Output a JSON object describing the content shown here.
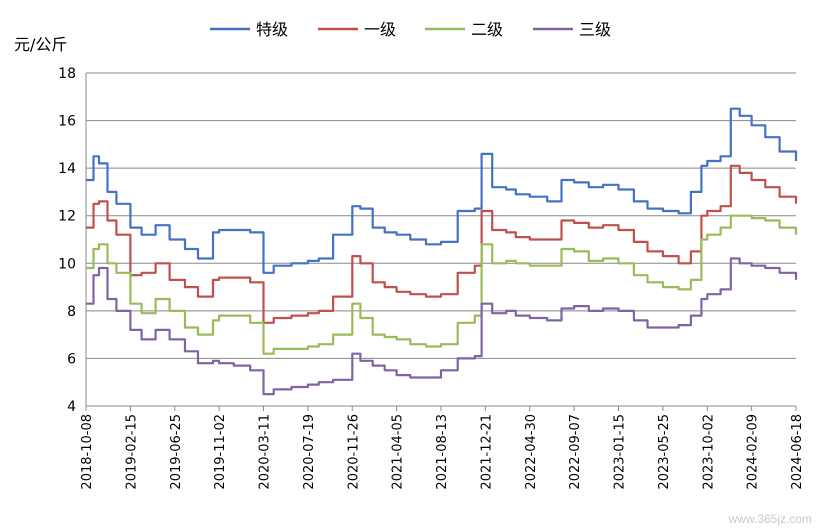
{
  "chart_data": {
    "type": "line",
    "ylabel": "元/公斤",
    "ylim": [
      4,
      18
    ],
    "yticks": [
      4,
      6,
      8,
      10,
      12,
      14,
      16,
      18
    ],
    "grid": true,
    "legend_position": "top",
    "xlim": [
      "2018-10-08",
      "2024-06-18"
    ],
    "xtick_labels": [
      "2018-10-08",
      "2019-02-15",
      "2019-06-25",
      "2019-11-02",
      "2020-03-11",
      "2020-07-19",
      "2020-11-26",
      "2021-04-05",
      "2021-08-13",
      "2021-12-21",
      "2022-04-30",
      "2022-09-07",
      "2023-01-15",
      "2023-05-25",
      "2023-10-02",
      "2024-02-09",
      "2024-06-18"
    ],
    "series": [
      {
        "name": "特级",
        "color": "#4472C4",
        "x": [
          "2018-10-08",
          "2018-10-30",
          "2018-11-15",
          "2018-12-10",
          "2019-01-05",
          "2019-02-15",
          "2019-03-20",
          "2019-04-30",
          "2019-06-10",
          "2019-07-25",
          "2019-09-01",
          "2019-10-15",
          "2019-11-02",
          "2019-12-15",
          "2020-02-01",
          "2020-03-11",
          "2020-04-10",
          "2020-06-01",
          "2020-07-19",
          "2020-08-20",
          "2020-10-01",
          "2020-11-26",
          "2020-12-20",
          "2021-01-25",
          "2021-03-01",
          "2021-04-05",
          "2021-05-15",
          "2021-06-30",
          "2021-08-13",
          "2021-10-01",
          "2021-11-20",
          "2021-12-10",
          "2022-01-10",
          "2022-02-20",
          "2022-03-20",
          "2022-04-30",
          "2022-06-20",
          "2022-08-01",
          "2022-09-07",
          "2022-10-20",
          "2022-12-01",
          "2023-01-15",
          "2023-03-01",
          "2023-04-10",
          "2023-05-25",
          "2023-07-10",
          "2023-08-15",
          "2023-09-15",
          "2023-10-02",
          "2023-11-10",
          "2023-12-10",
          "2024-01-05",
          "2024-02-09",
          "2024-03-20",
          "2024-05-01",
          "2024-06-18"
        ],
        "values": [
          13.5,
          14.5,
          14.2,
          13.0,
          12.5,
          11.5,
          11.2,
          11.6,
          11.0,
          10.6,
          10.2,
          11.3,
          11.4,
          11.4,
          11.3,
          9.6,
          9.9,
          10.0,
          10.1,
          10.2,
          11.2,
          12.4,
          12.3,
          11.5,
          11.3,
          11.2,
          11.0,
          10.8,
          10.9,
          12.2,
          12.3,
          14.6,
          13.2,
          13.1,
          12.9,
          12.8,
          12.6,
          13.5,
          13.4,
          13.2,
          13.3,
          13.1,
          12.6,
          12.3,
          12.2,
          12.1,
          13.0,
          14.1,
          14.3,
          14.5,
          16.5,
          16.2,
          15.8,
          15.3,
          14.7,
          14.3
        ]
      },
      {
        "name": "一级",
        "color": "#C0504D",
        "x": [
          "2018-10-08",
          "2018-10-30",
          "2018-11-15",
          "2018-12-10",
          "2019-01-05",
          "2019-02-15",
          "2019-03-20",
          "2019-04-30",
          "2019-06-10",
          "2019-07-25",
          "2019-09-01",
          "2019-10-15",
          "2019-11-02",
          "2019-12-15",
          "2020-02-01",
          "2020-03-11",
          "2020-04-10",
          "2020-06-01",
          "2020-07-19",
          "2020-08-20",
          "2020-10-01",
          "2020-11-26",
          "2020-12-20",
          "2021-01-25",
          "2021-03-01",
          "2021-04-05",
          "2021-05-15",
          "2021-06-30",
          "2021-08-13",
          "2021-10-01",
          "2021-11-20",
          "2021-12-10",
          "2022-01-10",
          "2022-02-20",
          "2022-03-20",
          "2022-04-30",
          "2022-06-20",
          "2022-08-01",
          "2022-09-07",
          "2022-10-20",
          "2022-12-01",
          "2023-01-15",
          "2023-03-01",
          "2023-04-10",
          "2023-05-25",
          "2023-07-10",
          "2023-08-15",
          "2023-09-15",
          "2023-10-02",
          "2023-11-10",
          "2023-12-10",
          "2024-01-05",
          "2024-02-09",
          "2024-03-20",
          "2024-05-01",
          "2024-06-18"
        ],
        "values": [
          11.5,
          12.5,
          12.6,
          11.8,
          11.2,
          9.5,
          9.6,
          10.0,
          9.3,
          9.0,
          8.6,
          9.3,
          9.4,
          9.4,
          9.2,
          7.5,
          7.7,
          7.8,
          7.9,
          8.0,
          8.6,
          10.3,
          10.0,
          9.2,
          9.0,
          8.8,
          8.7,
          8.6,
          8.7,
          9.6,
          9.9,
          12.2,
          11.4,
          11.3,
          11.1,
          11.0,
          11.0,
          11.8,
          11.7,
          11.5,
          11.6,
          11.4,
          10.9,
          10.5,
          10.3,
          10.0,
          10.5,
          12.0,
          12.2,
          12.4,
          14.1,
          13.8,
          13.5,
          13.2,
          12.8,
          12.5
        ]
      },
      {
        "name": "二级",
        "color": "#9BBB59",
        "x": [
          "2018-10-08",
          "2018-10-30",
          "2018-11-15",
          "2018-12-10",
          "2019-01-05",
          "2019-02-15",
          "2019-03-20",
          "2019-04-30",
          "2019-06-10",
          "2019-07-25",
          "2019-09-01",
          "2019-10-15",
          "2019-11-02",
          "2019-12-15",
          "2020-02-01",
          "2020-03-11",
          "2020-04-10",
          "2020-06-01",
          "2020-07-19",
          "2020-08-20",
          "2020-10-01",
          "2020-11-26",
          "2020-12-20",
          "2021-01-25",
          "2021-03-01",
          "2021-04-05",
          "2021-05-15",
          "2021-06-30",
          "2021-08-13",
          "2021-10-01",
          "2021-11-20",
          "2021-12-10",
          "2022-01-10",
          "2022-02-20",
          "2022-03-20",
          "2022-04-30",
          "2022-06-20",
          "2022-08-01",
          "2022-09-07",
          "2022-10-20",
          "2022-12-01",
          "2023-01-15",
          "2023-03-01",
          "2023-04-10",
          "2023-05-25",
          "2023-07-10",
          "2023-08-15",
          "2023-09-15",
          "2023-10-02",
          "2023-11-10",
          "2023-12-10",
          "2024-01-05",
          "2024-02-09",
          "2024-03-20",
          "2024-05-01",
          "2024-06-18"
        ],
        "values": [
          9.8,
          10.6,
          10.8,
          10.0,
          9.6,
          8.3,
          7.9,
          8.5,
          8.0,
          7.3,
          7.0,
          7.6,
          7.8,
          7.8,
          7.5,
          6.2,
          6.4,
          6.4,
          6.5,
          6.6,
          7.0,
          8.3,
          7.7,
          7.0,
          6.9,
          6.8,
          6.6,
          6.5,
          6.6,
          7.5,
          7.8,
          10.8,
          10.0,
          10.1,
          10.0,
          9.9,
          9.9,
          10.6,
          10.5,
          10.1,
          10.2,
          10.0,
          9.5,
          9.2,
          9.0,
          8.9,
          9.3,
          11.0,
          11.2,
          11.5,
          12.0,
          12.0,
          11.9,
          11.8,
          11.5,
          11.2
        ]
      },
      {
        "name": "三级",
        "color": "#8064A2",
        "x": [
          "2018-10-08",
          "2018-10-30",
          "2018-11-15",
          "2018-12-10",
          "2019-01-05",
          "2019-02-15",
          "2019-03-20",
          "2019-04-30",
          "2019-06-10",
          "2019-07-25",
          "2019-09-01",
          "2019-10-15",
          "2019-11-02",
          "2019-12-15",
          "2020-02-01",
          "2020-03-11",
          "2020-04-10",
          "2020-06-01",
          "2020-07-19",
          "2020-08-20",
          "2020-10-01",
          "2020-11-26",
          "2020-12-20",
          "2021-01-25",
          "2021-03-01",
          "2021-04-05",
          "2021-05-15",
          "2021-06-30",
          "2021-08-13",
          "2021-10-01",
          "2021-11-20",
          "2021-12-10",
          "2022-01-10",
          "2022-02-20",
          "2022-03-20",
          "2022-04-30",
          "2022-06-20",
          "2022-08-01",
          "2022-09-07",
          "2022-10-20",
          "2022-12-01",
          "2023-01-15",
          "2023-03-01",
          "2023-04-10",
          "2023-05-25",
          "2023-07-10",
          "2023-08-15",
          "2023-09-15",
          "2023-10-02",
          "2023-11-10",
          "2023-12-10",
          "2024-01-05",
          "2024-02-09",
          "2024-03-20",
          "2024-05-01",
          "2024-06-18"
        ],
        "values": [
          8.3,
          9.5,
          9.8,
          8.5,
          8.0,
          7.2,
          6.8,
          7.2,
          6.8,
          6.3,
          5.8,
          5.9,
          5.8,
          5.7,
          5.5,
          4.5,
          4.7,
          4.8,
          4.9,
          5.0,
          5.1,
          6.2,
          5.9,
          5.7,
          5.5,
          5.3,
          5.2,
          5.2,
          5.5,
          6.0,
          6.1,
          8.3,
          7.9,
          8.0,
          7.8,
          7.7,
          7.6,
          8.1,
          8.2,
          8.0,
          8.1,
          8.0,
          7.6,
          7.3,
          7.3,
          7.4,
          7.8,
          8.5,
          8.7,
          8.9,
          10.2,
          10.0,
          9.9,
          9.8,
          9.6,
          9.3
        ]
      }
    ]
  },
  "watermark": "www.365jz.com"
}
